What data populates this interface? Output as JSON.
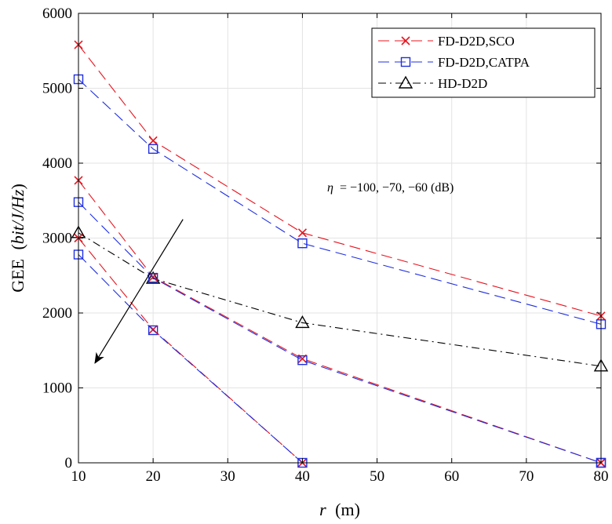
{
  "chart_data": {
    "type": "line",
    "xlabel_var": "r",
    "xlabel_unit": "(m)",
    "ylabel_prefix": "GEE",
    "ylabel_unit": "bit/J/Hz",
    "x_ticks": [
      10,
      20,
      30,
      40,
      50,
      60,
      70,
      80
    ],
    "y_ticks": [
      0,
      1000,
      2000,
      3000,
      4000,
      5000,
      6000
    ],
    "xlim": [
      10,
      80
    ],
    "ylim": [
      0,
      6000
    ],
    "grid": true,
    "legend_position": "top-right",
    "annotation": {
      "var": "η",
      "text": "= −100, −70, −60 (dB)",
      "arrow_from": [
        24,
        3250
      ],
      "arrow_to": [
        12.2,
        1330
      ]
    },
    "series": [
      {
        "name": "FD-D2D,SCO",
        "color": "#e8141e",
        "dash": "dashed",
        "marker": "x",
        "lines": [
          {
            "x": [
              10,
              20,
              40,
              80
            ],
            "y": [
              5580,
              4300,
              3070,
              1960
            ]
          },
          {
            "x": [
              10,
              20,
              40,
              80
            ],
            "y": [
              3770,
              2480,
              1390,
              0
            ]
          },
          {
            "x": [
              10,
              20,
              40,
              80
            ],
            "y": [
              3000,
              1780,
              0,
              0
            ]
          }
        ]
      },
      {
        "name": "FD-D2D,CATPA",
        "color": "#1f2fe0",
        "dash": "dashed",
        "marker": "square",
        "lines": [
          {
            "x": [
              10,
              20,
              40,
              80
            ],
            "y": [
              5120,
              4190,
              2930,
              1850
            ]
          },
          {
            "x": [
              10,
              20,
              40,
              80
            ],
            "y": [
              3480,
              2470,
              1370,
              0
            ]
          },
          {
            "x": [
              10,
              20,
              40,
              80
            ],
            "y": [
              2780,
              1770,
              0,
              0
            ]
          }
        ]
      },
      {
        "name": "HD-D2D",
        "color": "#000000",
        "dash": "dashdot",
        "marker": "triangle",
        "lines": [
          {
            "x": [
              10,
              20,
              40,
              80
            ],
            "y": [
              3070,
              2460,
              1870,
              1290
            ]
          }
        ]
      }
    ]
  }
}
